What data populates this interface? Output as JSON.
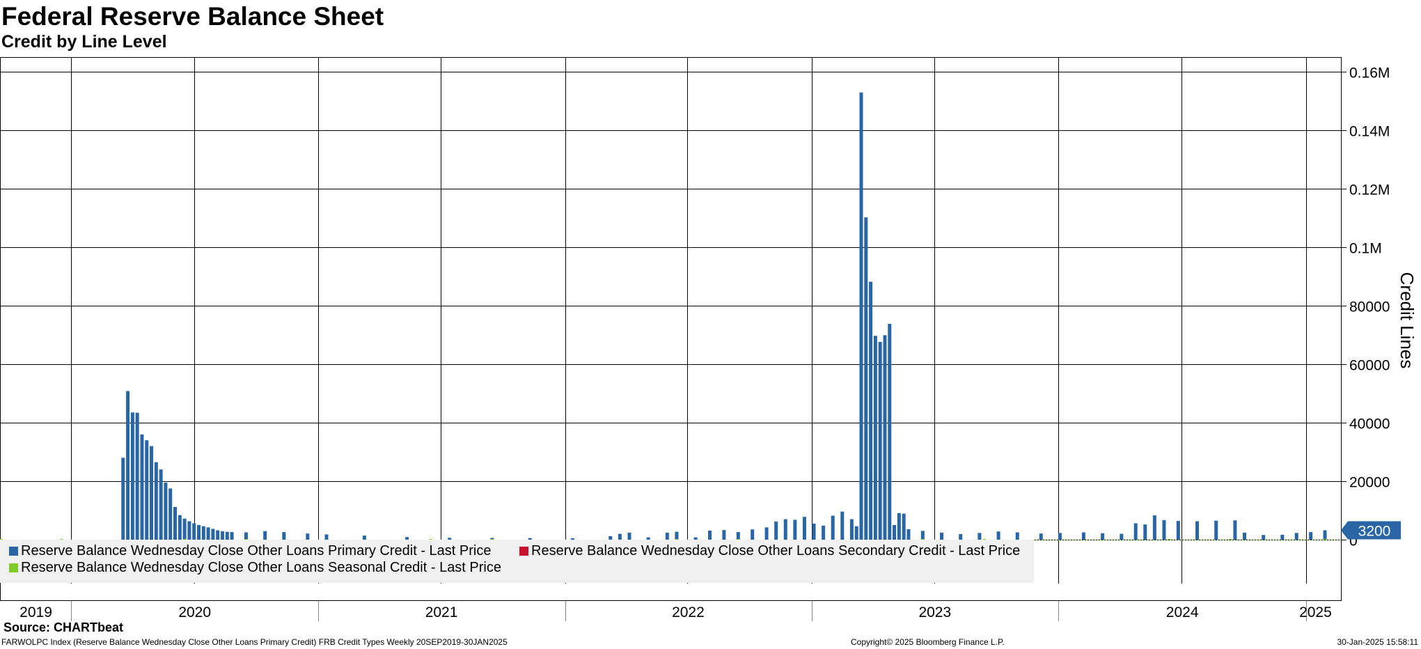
{
  "header": {
    "title": "Federal Reserve Balance Sheet",
    "subtitle": "Credit by Line Level"
  },
  "footer": {
    "source": "Source: CHARTbeat",
    "description": "FARWOLPC Index (Reserve Balance Wednesday Close Other Loans Primary Credit) FRB Credit Types  Weekly 20SEP2019-30JAN2025",
    "copyright": "Copyright© 2025 Bloomberg Finance L.P.",
    "timestamp": "30-Jan-2025 15:58:11"
  },
  "colors": {
    "primary": "#2a66a6",
    "primary_light": "#8fb3d6",
    "secondary": "#c8102e",
    "seasonal": "#7fcc28",
    "last_value_bg": "#2a66a6"
  },
  "chart_data": {
    "type": "bar",
    "ylabel": "Credit Lines",
    "ylim": [
      -15000,
      165000
    ],
    "yticks": [
      0,
      20000,
      40000,
      60000,
      80000,
      100000,
      120000,
      140000,
      160000
    ],
    "ytick_labels": [
      "0",
      "20000",
      "40000",
      "60000",
      "80000",
      "0.1M",
      "0.12M",
      "0.14M",
      "0.16M"
    ],
    "x_start": "2019-09-20",
    "x_end": "2025-01-30",
    "x_year_labels": [
      "2019",
      "2020",
      "2021",
      "2022",
      "2023",
      "2024",
      "2025"
    ],
    "grid": true,
    "last_value_label": "3200",
    "legend": [
      {
        "name": "Reserve Balance Wednesday Close Other Loans Primary Credit - Last Price",
        "color": "#2a66a6"
      },
      {
        "name": "Reserve Balance Wednesday Close Other Loans Secondary Credit - Last Price",
        "color": "#c8102e"
      },
      {
        "name": "Reserve Balance Wednesday Close Other Loans Seasonal Credit - Last Price",
        "color": "#7fcc28"
      }
    ],
    "series": [
      {
        "name": "Reserve Balance Wednesday Close Other Loans Primary Credit - Last Price",
        "points": [
          [
            "2019-09-20",
            0
          ],
          [
            "2020-03-18",
            28000
          ],
          [
            "2020-03-25",
            50800
          ],
          [
            "2020-04-01",
            43500
          ],
          [
            "2020-04-08",
            43400
          ],
          [
            "2020-04-15",
            36000
          ],
          [
            "2020-04-22",
            34000
          ],
          [
            "2020-04-29",
            32000
          ],
          [
            "2020-05-06",
            26500
          ],
          [
            "2020-05-13",
            24000
          ],
          [
            "2020-05-20",
            19500
          ],
          [
            "2020-05-27",
            17500
          ],
          [
            "2020-06-03",
            11200
          ],
          [
            "2020-06-10",
            8400
          ],
          [
            "2020-06-17",
            7200
          ],
          [
            "2020-06-24",
            6300
          ],
          [
            "2020-07-01",
            5600
          ],
          [
            "2020-07-08",
            5000
          ],
          [
            "2020-07-15",
            4600
          ],
          [
            "2020-07-22",
            4200
          ],
          [
            "2020-07-29",
            3700
          ],
          [
            "2020-08-05",
            3200
          ],
          [
            "2020-08-12",
            2900
          ],
          [
            "2020-08-19",
            2700
          ],
          [
            "2020-08-26",
            2600
          ],
          [
            "2020-09-16",
            2500
          ],
          [
            "2020-10-14",
            2900
          ],
          [
            "2020-11-11",
            2600
          ],
          [
            "2020-12-16",
            2100
          ],
          [
            "2021-01-13",
            1800
          ],
          [
            "2021-03-10",
            1400
          ],
          [
            "2021-05-12",
            900
          ],
          [
            "2021-07-14",
            650
          ],
          [
            "2021-09-15",
            600
          ],
          [
            "2021-11-10",
            550
          ],
          [
            "2022-01-12",
            500
          ],
          [
            "2022-03-09",
            1200
          ],
          [
            "2022-03-23",
            2000
          ],
          [
            "2022-04-06",
            2400
          ],
          [
            "2022-05-04",
            800
          ],
          [
            "2022-06-01",
            2400
          ],
          [
            "2022-06-15",
            2700
          ],
          [
            "2022-07-13",
            800
          ],
          [
            "2022-08-03",
            3100
          ],
          [
            "2022-08-24",
            3300
          ],
          [
            "2022-09-14",
            2600
          ],
          [
            "2022-10-05",
            3500
          ],
          [
            "2022-10-26",
            4200
          ],
          [
            "2022-11-09",
            6200
          ],
          [
            "2022-11-23",
            7000
          ],
          [
            "2022-12-07",
            6800
          ],
          [
            "2022-12-21",
            7800
          ],
          [
            "2023-01-04",
            5500
          ],
          [
            "2023-01-18",
            4800
          ],
          [
            "2023-02-01",
            8200
          ],
          [
            "2023-02-15",
            9600
          ],
          [
            "2023-03-01",
            7000
          ],
          [
            "2023-03-08",
            4600
          ],
          [
            "2023-03-15",
            152900
          ],
          [
            "2023-03-22",
            110200
          ],
          [
            "2023-03-29",
            88200
          ],
          [
            "2023-04-05",
            69700
          ],
          [
            "2023-04-12",
            67600
          ],
          [
            "2023-04-19",
            69900
          ],
          [
            "2023-04-26",
            73800
          ],
          [
            "2023-05-03",
            5000
          ],
          [
            "2023-05-10",
            9100
          ],
          [
            "2023-05-17",
            8900
          ],
          [
            "2023-05-24",
            3600
          ],
          [
            "2023-06-14",
            3000
          ],
          [
            "2023-07-12",
            2400
          ],
          [
            "2023-08-09",
            1900
          ],
          [
            "2023-09-06",
            2300
          ],
          [
            "2023-10-04",
            2800
          ],
          [
            "2023-11-01",
            2500
          ],
          [
            "2023-12-06",
            2100
          ],
          [
            "2024-01-03",
            2300
          ],
          [
            "2024-02-07",
            2500
          ],
          [
            "2024-03-06",
            2200
          ],
          [
            "2024-04-03",
            2000
          ],
          [
            "2024-04-24",
            5600
          ],
          [
            "2024-05-08",
            5200
          ],
          [
            "2024-05-22",
            8300
          ],
          [
            "2024-06-05",
            6700
          ],
          [
            "2024-06-26",
            6400
          ],
          [
            "2024-07-24",
            6300
          ],
          [
            "2024-08-21",
            6500
          ],
          [
            "2024-09-18",
            6600
          ],
          [
            "2024-10-02",
            2400
          ],
          [
            "2024-10-30",
            1600
          ],
          [
            "2024-11-27",
            1700
          ],
          [
            "2024-12-18",
            2300
          ],
          [
            "2025-01-08",
            2600
          ],
          [
            "2025-01-29",
            3200
          ]
        ]
      },
      {
        "name": "Reserve Balance Wednesday Close Other Loans Secondary Credit - Last Price",
        "points": []
      },
      {
        "name": "Reserve Balance Wednesday Close Other Loans Seasonal Credit - Last Price",
        "points": [
          [
            "2019-09-20",
            80
          ],
          [
            "2019-12-18",
            40
          ],
          [
            "2020-06-17",
            40
          ],
          [
            "2020-09-16",
            70
          ],
          [
            "2021-06-16",
            60
          ],
          [
            "2021-09-15",
            90
          ],
          [
            "2022-06-15",
            110
          ],
          [
            "2022-09-14",
            140
          ],
          [
            "2023-06-14",
            150
          ],
          [
            "2023-09-13",
            190
          ],
          [
            "2024-06-12",
            210
          ],
          [
            "2024-09-11",
            230
          ],
          [
            "2025-01-29",
            60
          ]
        ]
      }
    ]
  }
}
